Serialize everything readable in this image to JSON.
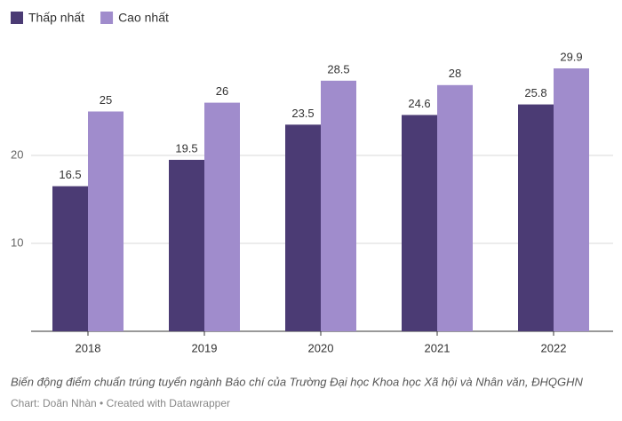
{
  "chart_data": {
    "type": "bar",
    "categories": [
      "2018",
      "2019",
      "2020",
      "2021",
      "2022"
    ],
    "series": [
      {
        "name": "Thấp nhất",
        "color": "#4b3b74",
        "values": [
          16.5,
          19.5,
          23.5,
          24.6,
          25.8
        ]
      },
      {
        "name": "Cao nhất",
        "color": "#a08ccc",
        "values": [
          25,
          26,
          28.5,
          28,
          29.9
        ]
      }
    ],
    "ylim": [
      0,
      30
    ],
    "yticks": [
      10,
      20
    ],
    "grid": true,
    "caption": "Biến động điểm chuẩn trúng tuyển ngành Báo chí của Trường Đại học Khoa học Xã hội và Nhân văn, ĐHQGHN",
    "source": "Chart: Doãn Nhàn • Created with Datawrapper"
  }
}
